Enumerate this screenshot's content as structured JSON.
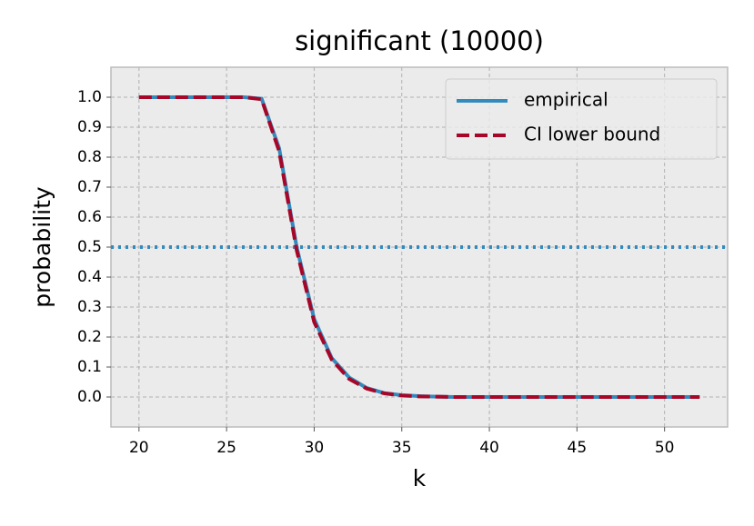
{
  "chart_data": {
    "type": "line",
    "title": "significant (10000)",
    "xlabel": "k",
    "ylabel": "probability",
    "x": [
      20,
      21,
      22,
      23,
      24,
      25,
      26,
      27,
      28,
      29,
      30,
      31,
      32,
      33,
      34,
      35,
      36,
      37,
      38,
      39,
      40,
      41,
      42,
      43,
      44,
      45,
      46,
      47,
      48,
      49,
      50,
      51,
      52
    ],
    "series": [
      {
        "name": "empirical",
        "color": "#348abd",
        "style": "solid",
        "values": [
          1,
          1,
          1,
          1,
          1,
          1,
          1,
          0.995,
          0.83,
          0.5,
          0.26,
          0.13,
          0.065,
          0.03,
          0.013,
          0.006,
          0.003,
          0.001,
          0,
          0,
          0,
          0,
          0,
          0,
          0,
          0,
          0,
          0,
          0,
          0,
          0,
          0,
          0
        ]
      },
      {
        "name": "CI lower bound",
        "color": "#a60628",
        "style": "dashed",
        "values": [
          1,
          1,
          1,
          1,
          1,
          1,
          1,
          0.993,
          0.82,
          0.49,
          0.25,
          0.125,
          0.06,
          0.028,
          0.012,
          0.005,
          0.002,
          0.001,
          0,
          0,
          0,
          0,
          0,
          0,
          0,
          0,
          0,
          0,
          0,
          0,
          0,
          0,
          0
        ]
      }
    ],
    "hlines": [
      {
        "value": 0.5,
        "color": "#348abd",
        "style": "dotted"
      }
    ],
    "xlim": [
      18.4,
      53.6
    ],
    "ylim": [
      -0.1,
      1.1
    ],
    "xticks": [
      20,
      25,
      30,
      35,
      40,
      45,
      50
    ],
    "yticks": [
      {
        "value": 0,
        "label": "0.0"
      },
      0.1,
      0.2,
      0.3,
      0.4,
      0.5,
      0.6,
      0.7,
      0.8,
      0.9,
      {
        "value": 1,
        "label": "1.0"
      }
    ],
    "grid": true,
    "legend": "upper right"
  }
}
